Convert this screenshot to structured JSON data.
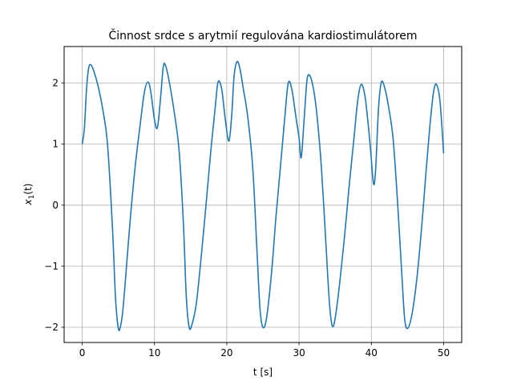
{
  "chart_data": {
    "type": "line",
    "title": "Činnost srdce s arytmií regulována kardiostimulátorem",
    "xlabel": "t [s]",
    "ylabel_base": "x",
    "ylabel_sub": "1",
    "ylabel_arg": "(t)",
    "xlim": [
      -2.5,
      52.5
    ],
    "ylim": [
      -2.25,
      2.6
    ],
    "grid": true,
    "x_ticks": [
      0,
      10,
      20,
      30,
      40,
      50
    ],
    "x_tick_labels": [
      "0",
      "10",
      "20",
      "30",
      "40",
      "50"
    ],
    "y_ticks": [
      -2,
      -1,
      0,
      1,
      2
    ],
    "y_tick_labels": [
      "−2",
      "−1",
      "0",
      "1",
      "2"
    ],
    "series": [
      {
        "color": "#1f77b4",
        "x": [
          0,
          0.3,
          0.6,
          0.9,
          1.2,
          1.6,
          2.2,
          2.8,
          3.5,
          4.2,
          4.6,
          5.0,
          5.3,
          5.6,
          6.0,
          6.6,
          7.3,
          8.0,
          8.6,
          9.1,
          9.5,
          10.0,
          10.4,
          10.8,
          11.2,
          11.5,
          12.0,
          12.7,
          13.4,
          14.0,
          14.4,
          14.8,
          15.2,
          15.8,
          16.5,
          17.2,
          17.8,
          18.4,
          18.8,
          19.3,
          19.8,
          20.3,
          20.7,
          21.0,
          21.4,
          21.8,
          22.3,
          22.9,
          23.6,
          24.2,
          24.6,
          25.0,
          25.5,
          26.2,
          26.8,
          27.4,
          28.0,
          28.5,
          29.0,
          29.5,
          30.0,
          30.3,
          30.7,
          31.1,
          31.5,
          32.0,
          32.5,
          33.1,
          33.7,
          34.2,
          34.6,
          35.0,
          35.6,
          36.3,
          37.0,
          37.6,
          38.1,
          38.6,
          39.1,
          39.5,
          39.9,
          40.3,
          40.6,
          41.0,
          41.4,
          41.9,
          42.4,
          43.0,
          43.6,
          44.2,
          44.6,
          45.0,
          45.6,
          46.3,
          47.0,
          47.6,
          48.1,
          48.6,
          49.0,
          49.5,
          50.0
        ],
        "y": [
          1.0,
          1.25,
          1.9,
          2.25,
          2.3,
          2.2,
          1.95,
          1.6,
          1.0,
          -0.4,
          -1.5,
          -2.02,
          -1.98,
          -1.75,
          -1.2,
          -0.3,
          0.6,
          1.3,
          1.85,
          2.02,
          1.85,
          1.4,
          1.27,
          1.7,
          2.25,
          2.3,
          2.05,
          1.55,
          0.9,
          -0.3,
          -1.5,
          -2.0,
          -1.95,
          -1.6,
          -0.8,
          0.1,
          0.9,
          1.6,
          2.02,
          1.9,
          1.4,
          1.05,
          1.5,
          2.1,
          2.35,
          2.25,
          1.9,
          1.45,
          0.6,
          -0.8,
          -1.7,
          -2.0,
          -1.85,
          -1.1,
          -0.2,
          0.6,
          1.4,
          2.0,
          1.9,
          1.5,
          1.1,
          0.78,
          1.4,
          2.05,
          2.12,
          1.9,
          1.45,
          0.6,
          -0.6,
          -1.6,
          -1.98,
          -1.85,
          -1.3,
          -0.5,
          0.4,
          1.1,
          1.7,
          1.98,
          1.8,
          1.4,
          0.9,
          0.35,
          0.6,
          1.6,
          2.02,
          1.9,
          1.6,
          1.1,
          0.1,
          -1.1,
          -1.85,
          -2.02,
          -1.8,
          -1.2,
          -0.3,
          0.6,
          1.3,
          1.85,
          1.98,
          1.7,
          0.85
        ]
      }
    ]
  }
}
